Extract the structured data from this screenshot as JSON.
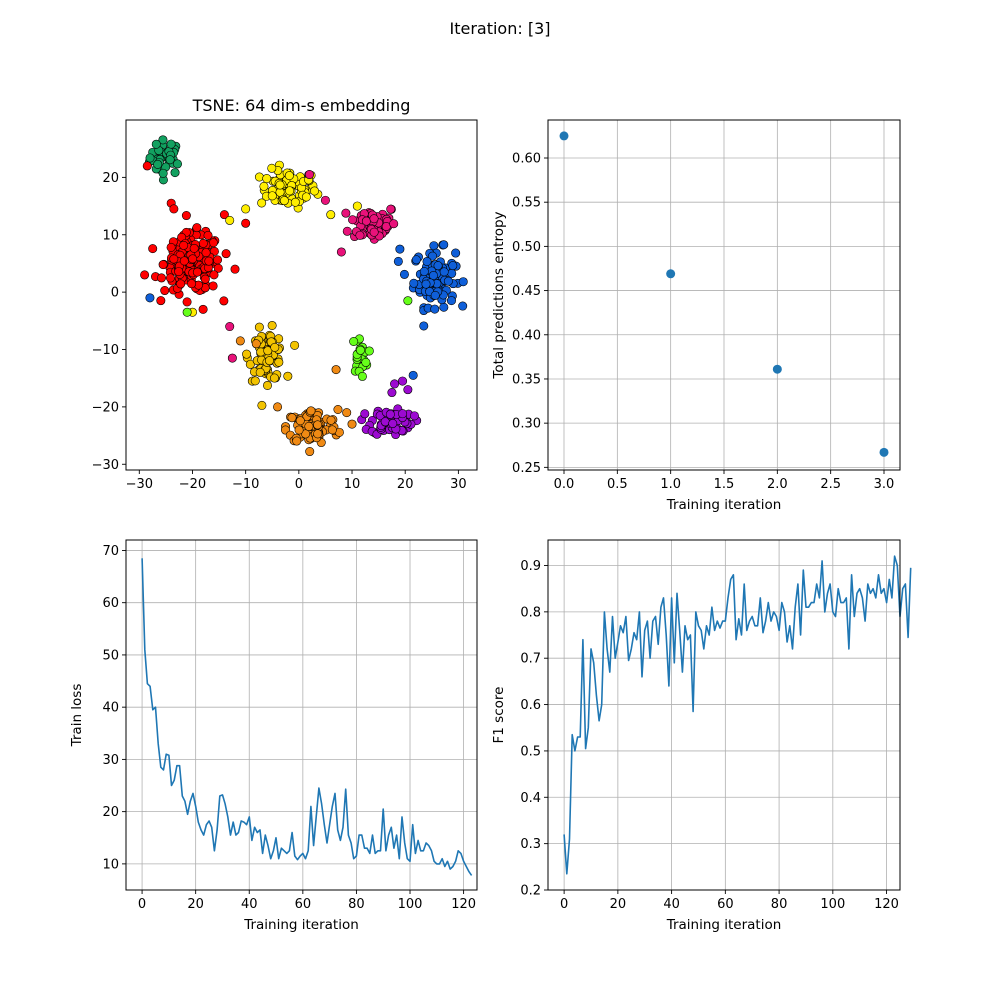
{
  "suptitle": "Iteration: [3]",
  "chart_data": [
    {
      "type": "scatter",
      "title": "TSNE: 64 dim-s embedding",
      "xlabel": "",
      "ylabel": "",
      "xlim": [
        -32.5,
        33.5
      ],
      "ylim": [
        -31,
        30
      ],
      "xticks": [
        -30,
        -20,
        -10,
        0,
        10,
        20,
        30
      ],
      "yticks": [
        -30,
        -20,
        -10,
        0,
        10,
        20
      ],
      "xtick_labels": [
        "−30",
        "−20",
        "−10",
        "0",
        "10",
        "20",
        "30"
      ],
      "ytick_labels": [
        "−30",
        "−20",
        "−10",
        "0",
        "10",
        "20"
      ],
      "grid": false,
      "marker_edge_color": "#000000",
      "clusters": [
        {
          "color": "#12a160",
          "center": [
            -25,
            23.5
          ],
          "spread": [
            2.0,
            2.0
          ],
          "count": 40
        },
        {
          "color": "#ffee00",
          "center": [
            -2,
            18
          ],
          "spread": [
            3.5,
            2.2
          ],
          "count": 75
        },
        {
          "color": "#e8127a",
          "center": [
            14,
            12
          ],
          "spread": [
            3.0,
            2.2
          ],
          "count": 60
        },
        {
          "color": "#0f5fd9",
          "center": [
            25.5,
            2.5
          ],
          "spread": [
            2.6,
            3.3
          ],
          "count": 110
        },
        {
          "color": "#ff0000",
          "center": [
            -20,
            5
          ],
          "spread": [
            3.5,
            3.4
          ],
          "count": 190
        },
        {
          "color": "#f2c300",
          "center": [
            -6,
            -11
          ],
          "spread": [
            2.2,
            2.9
          ],
          "count": 70
        },
        {
          "color": "#66ff1a",
          "center": [
            11.5,
            -11
          ],
          "spread": [
            1.0,
            2.2
          ],
          "count": 22
        },
        {
          "color": "#f08a14",
          "center": [
            2.5,
            -23.5
          ],
          "spread": [
            3.2,
            2.0
          ],
          "count": 110
        },
        {
          "color": "#9c0ad1",
          "center": [
            17.5,
            -22.5
          ],
          "spread": [
            2.6,
            1.6
          ],
          "count": 70
        }
      ],
      "outliers": [
        {
          "color": "#9c0ad1",
          "points": [
            [
              18,
              -16
            ],
            [
              19.5,
              -15.5
            ],
            [
              20.5,
              -17
            ],
            [
              17.5,
              -17.5
            ]
          ]
        },
        {
          "color": "#0f5fd9",
          "points": [
            [
              21.5,
              -14.5
            ],
            [
              19,
              7.5
            ],
            [
              -28,
              -1
            ]
          ]
        },
        {
          "color": "#ff0000",
          "points": [
            [
              -24,
              15.5
            ],
            [
              -23.5,
              14.5
            ],
            [
              -28.5,
              22
            ],
            [
              -12,
              4
            ],
            [
              -14,
              13.5
            ],
            [
              -10,
              12
            ],
            [
              -18,
              -3
            ],
            [
              -29,
              3
            ]
          ]
        },
        {
          "color": "#ffee00",
          "points": [
            [
              -20,
              -3.5
            ],
            [
              -10,
              14.5
            ],
            [
              -13,
              12.5
            ],
            [
              6,
              13.5
            ],
            [
              11,
              15
            ]
          ]
        },
        {
          "color": "#e8127a",
          "points": [
            [
              8,
              7
            ],
            [
              5,
              16
            ],
            [
              2,
              20.5
            ],
            [
              -12.5,
              -11.5
            ],
            [
              -13,
              -6
            ]
          ]
        },
        {
          "color": "#66ff1a",
          "points": [
            [
              -21,
              -3.5
            ],
            [
              20.5,
              -1.5
            ]
          ]
        },
        {
          "color": "#f08a14",
          "points": [
            [
              -11,
              -8.5
            ],
            [
              -8,
              -9
            ],
            [
              -4,
              -20
            ],
            [
              7,
              -13.5
            ],
            [
              9,
              -21
            ],
            [
              10,
              -23
            ]
          ]
        }
      ]
    },
    {
      "type": "scatter",
      "title": "",
      "xlabel": "Training iteration",
      "ylabel": "Total predictions entropy",
      "x": [
        0,
        1,
        2,
        3
      ],
      "y": [
        0.625,
        0.469,
        0.361,
        0.267
      ],
      "xlim": [
        -0.15,
        3.15
      ],
      "ylim": [
        0.247,
        0.643
      ],
      "xticks": [
        0.0,
        0.5,
        1.0,
        1.5,
        2.0,
        2.5,
        3.0
      ],
      "yticks": [
        0.25,
        0.3,
        0.35,
        0.4,
        0.45,
        0.5,
        0.55,
        0.6
      ],
      "xtick_labels": [
        "0.0",
        "0.5",
        "1.0",
        "1.5",
        "2.0",
        "2.5",
        "3.0"
      ],
      "ytick_labels": [
        "0.25",
        "0.30",
        "0.35",
        "0.40",
        "0.45",
        "0.50",
        "0.55",
        "0.60"
      ],
      "grid": true,
      "color": "#1f77b4"
    },
    {
      "type": "line",
      "title": "",
      "xlabel": "Training iteration",
      "ylabel": "Train loss",
      "x_start": 0,
      "y": [
        68.5,
        51,
        44.5,
        44,
        39.5,
        40,
        33,
        28.5,
        28,
        31,
        30.8,
        25,
        26,
        28.8,
        28.8,
        23,
        22,
        19.5,
        22,
        23.5,
        21,
        18,
        16.5,
        15.5,
        17.5,
        18.2,
        17,
        12.5,
        16.5,
        23,
        23.2,
        21.5,
        19,
        15.5,
        18,
        15.5,
        16,
        18.2,
        18,
        17.5,
        19,
        14.5,
        17,
        16,
        16.5,
        12,
        15.5,
        13.5,
        11,
        12.5,
        15,
        11,
        13,
        12.5,
        12,
        12.5,
        16,
        11.5,
        10.8,
        11.5,
        12,
        11,
        12.5,
        21,
        13.5,
        19,
        24.5,
        21.5,
        17.5,
        14,
        17.5,
        21,
        23.5,
        16.5,
        14.5,
        17,
        24.3,
        15.5,
        14,
        11,
        11.5,
        15.5,
        15.5,
        13,
        13,
        12,
        15.5,
        12,
        12.5,
        12.5,
        20.5,
        12.5,
        15.5,
        17,
        13,
        15.5,
        11,
        19,
        14,
        11,
        10.5,
        17.5,
        12,
        14.5,
        12.5,
        12.5,
        14,
        13.5,
        12.5,
        10.5,
        10,
        10,
        11,
        9.5,
        10.5,
        9,
        9.5,
        10.5,
        12.5,
        12,
        10.5,
        9.5,
        8.5,
        7.8
      ],
      "xlim": [
        -6,
        125
      ],
      "ylim": [
        5,
        72
      ],
      "xticks": [
        0,
        20,
        40,
        60,
        80,
        100,
        120
      ],
      "yticks": [
        10,
        20,
        30,
        40,
        50,
        60,
        70
      ],
      "xtick_labels": [
        "0",
        "20",
        "40",
        "60",
        "80",
        "100",
        "120"
      ],
      "ytick_labels": [
        "10",
        "20",
        "30",
        "40",
        "50",
        "60",
        "70"
      ],
      "grid": true,
      "color": "#1f77b4"
    },
    {
      "type": "line",
      "title": "",
      "xlabel": "Training iteration",
      "ylabel": "F1 score",
      "x_start": 0,
      "y": [
        0.32,
        0.235,
        0.31,
        0.535,
        0.5,
        0.53,
        0.53,
        0.74,
        0.505,
        0.55,
        0.72,
        0.69,
        0.62,
        0.565,
        0.6,
        0.8,
        0.72,
        0.67,
        0.79,
        0.7,
        0.735,
        0.77,
        0.755,
        0.79,
        0.695,
        0.72,
        0.755,
        0.74,
        0.8,
        0.66,
        0.76,
        0.78,
        0.7,
        0.78,
        0.79,
        0.73,
        0.81,
        0.83,
        0.75,
        0.64,
        0.83,
        0.69,
        0.84,
        0.76,
        0.67,
        0.77,
        0.74,
        0.75,
        0.585,
        0.8,
        0.77,
        0.76,
        0.72,
        0.77,
        0.75,
        0.81,
        0.76,
        0.78,
        0.765,
        0.78,
        0.78,
        0.83,
        0.87,
        0.88,
        0.74,
        0.785,
        0.75,
        0.86,
        0.76,
        0.78,
        0.79,
        0.77,
        0.77,
        0.83,
        0.755,
        0.78,
        0.82,
        0.78,
        0.8,
        0.79,
        0.76,
        0.82,
        0.8,
        0.735,
        0.77,
        0.72,
        0.81,
        0.86,
        0.75,
        0.89,
        0.81,
        0.81,
        0.82,
        0.82,
        0.86,
        0.83,
        0.91,
        0.8,
        0.84,
        0.86,
        0.8,
        0.79,
        0.85,
        0.82,
        0.82,
        0.83,
        0.72,
        0.88,
        0.79,
        0.84,
        0.85,
        0.83,
        0.78,
        0.86,
        0.84,
        0.85,
        0.83,
        0.88,
        0.84,
        0.85,
        0.82,
        0.87,
        0.83,
        0.92,
        0.9,
        0.79,
        0.85,
        0.86,
        0.745,
        0.895
      ],
      "xlim": [
        -6,
        125
      ],
      "ylim": [
        0.2,
        0.955
      ],
      "xticks": [
        0,
        20,
        40,
        60,
        80,
        100,
        120
      ],
      "yticks": [
        0.2,
        0.3,
        0.4,
        0.5,
        0.6,
        0.7,
        0.8,
        0.9
      ],
      "xtick_labels": [
        "0",
        "20",
        "40",
        "60",
        "80",
        "100",
        "120"
      ],
      "ytick_labels": [
        "0.2",
        "0.3",
        "0.4",
        "0.5",
        "0.6",
        "0.7",
        "0.8",
        "0.9"
      ],
      "grid": true,
      "color": "#1f77b4"
    }
  ]
}
